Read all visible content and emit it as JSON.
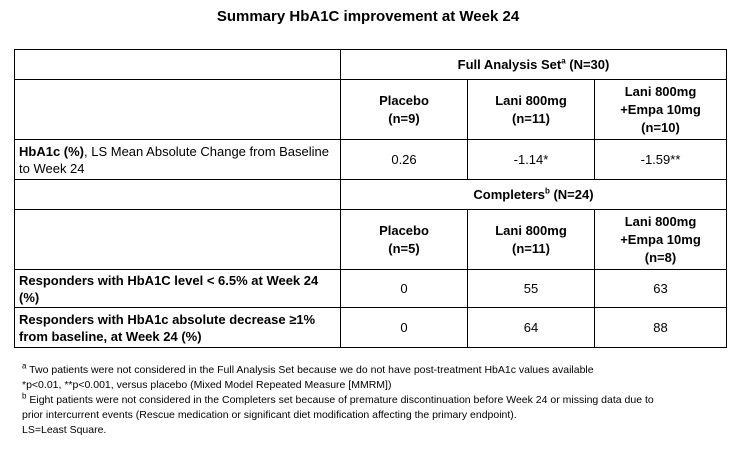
{
  "title": "Summary HbA1C improvement at Week 24",
  "fas_header": {
    "label": "Full Analysis Set",
    "sup": "a",
    "count": " (N=30)"
  },
  "fas_groups": [
    {
      "l1": "Placebo",
      "l2": "(n=9)",
      "l3": ""
    },
    {
      "l1": "Lani 800mg",
      "l2": "(n=11)",
      "l3": ""
    },
    {
      "l1": "Lani 800mg",
      "l2": "+Empa 10mg",
      "l3": "(n=10)"
    }
  ],
  "fas_row": {
    "label_bold": "HbA1c (%)",
    "label_rest": ", LS Mean Absolute Change from Baseline to Week 24",
    "values": [
      "0.26",
      "-1.14*",
      "-1.59**"
    ]
  },
  "comp_header": {
    "label": "Completers",
    "sup": "b",
    "count": " (N=24)"
  },
  "comp_groups": [
    {
      "l1": "Placebo",
      "l2": "(n=5)",
      "l3": ""
    },
    {
      "l1": "Lani 800mg",
      "l2": "(n=11)",
      "l3": ""
    },
    {
      "l1": "Lani 800mg",
      "l2": "+Empa 10mg",
      "l3": "(n=8)"
    }
  ],
  "rows": [
    {
      "label": "Responders with HbA1C level < 6.5% at Week 24 (%)",
      "values": [
        "0",
        "55",
        "63"
      ]
    },
    {
      "label": "Responders with HbA1c absolute decrease ≥1% from baseline, at Week 24 (%)",
      "values": [
        "0",
        "64",
        "88"
      ]
    }
  ],
  "notes": {
    "a_mark": "a",
    "a": " Two patients were not considered in the Full Analysis Set because we do not have post-treatment HbA1c values available",
    "p": "*p<0.01, **p<0.001, versus placebo (Mixed Model Repeated Measure [MMRM])",
    "b_mark": "b",
    "b1": " Eight patients were not considered in the Completers set because of premature discontinuation before Week 24 or missing data due to",
    "b2": "prior intercurrent events (Rescue medication or significant diet modification affecting the primary endpoint).",
    "ls": "LS=Least Square."
  }
}
